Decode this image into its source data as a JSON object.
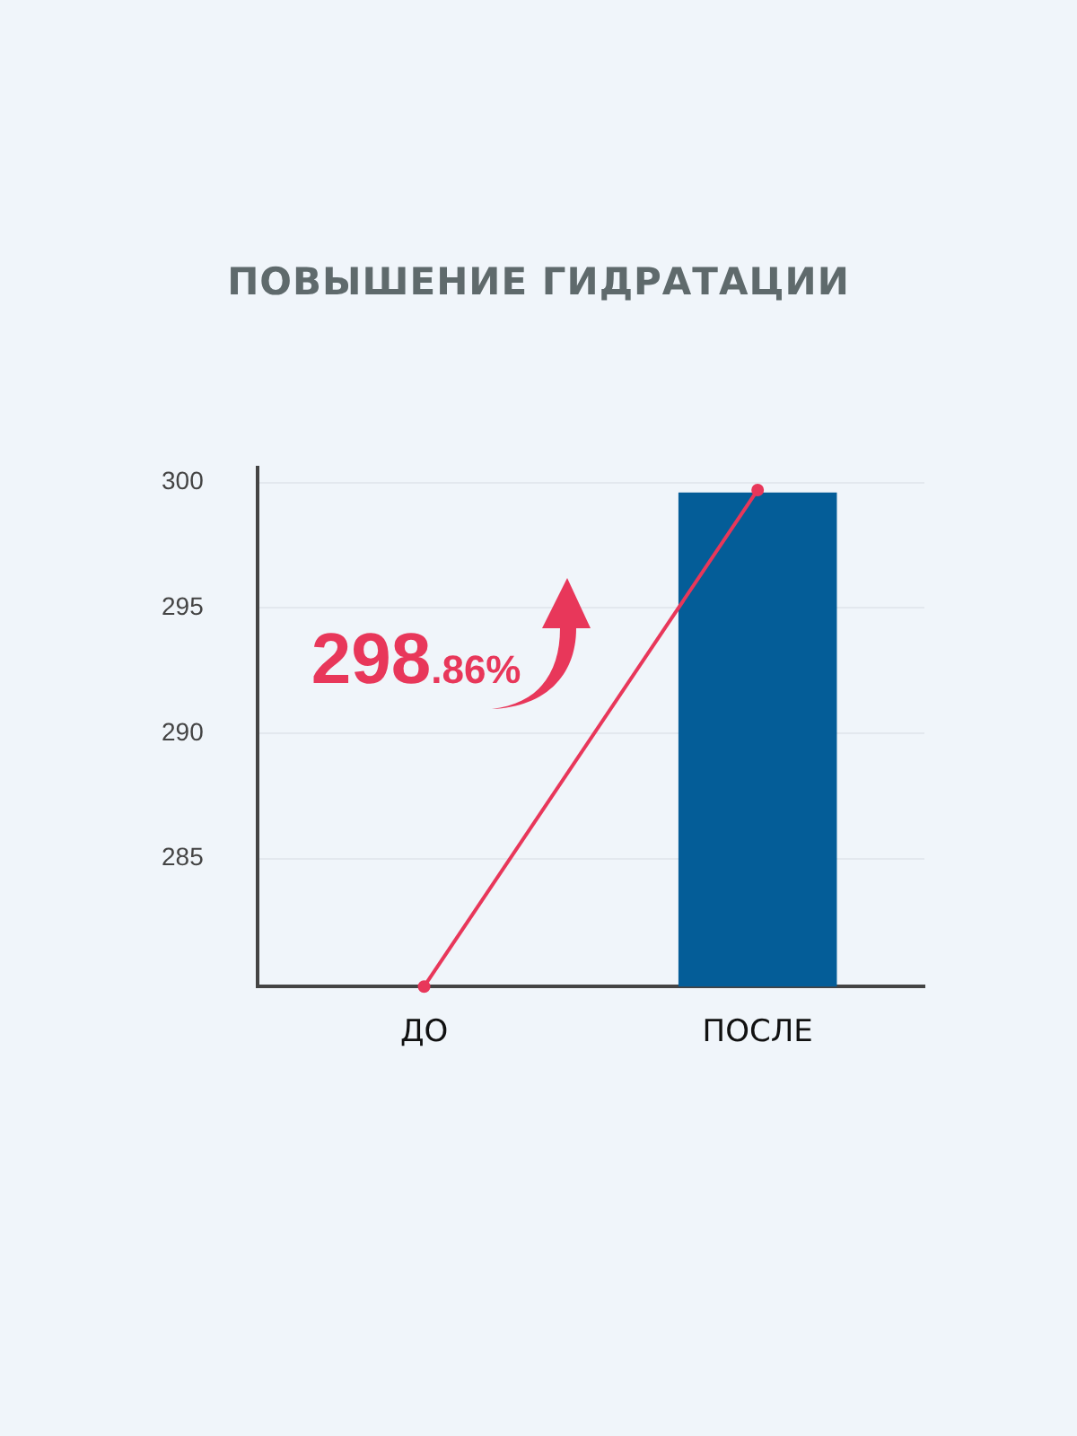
{
  "chart_data": {
    "type": "bar",
    "title": "ПОВЫШЕНИЕ ГИДРАТАЦИИ",
    "categories": [
      "ДО",
      "ПОСЛЕ"
    ],
    "series": [
      {
        "color": "#045d98",
        "values": [
          null,
          299.6
        ]
      },
      {
        "type": "line",
        "color": "#e8375a",
        "values": [
          279.9,
          299.7
        ],
        "marker": "circle"
      }
    ],
    "ylim": [
      279.9,
      300.6
    ],
    "yticks": [
      285,
      290,
      295,
      300
    ],
    "grid": "y",
    "annotations": [
      "298.86%"
    ]
  }
}
